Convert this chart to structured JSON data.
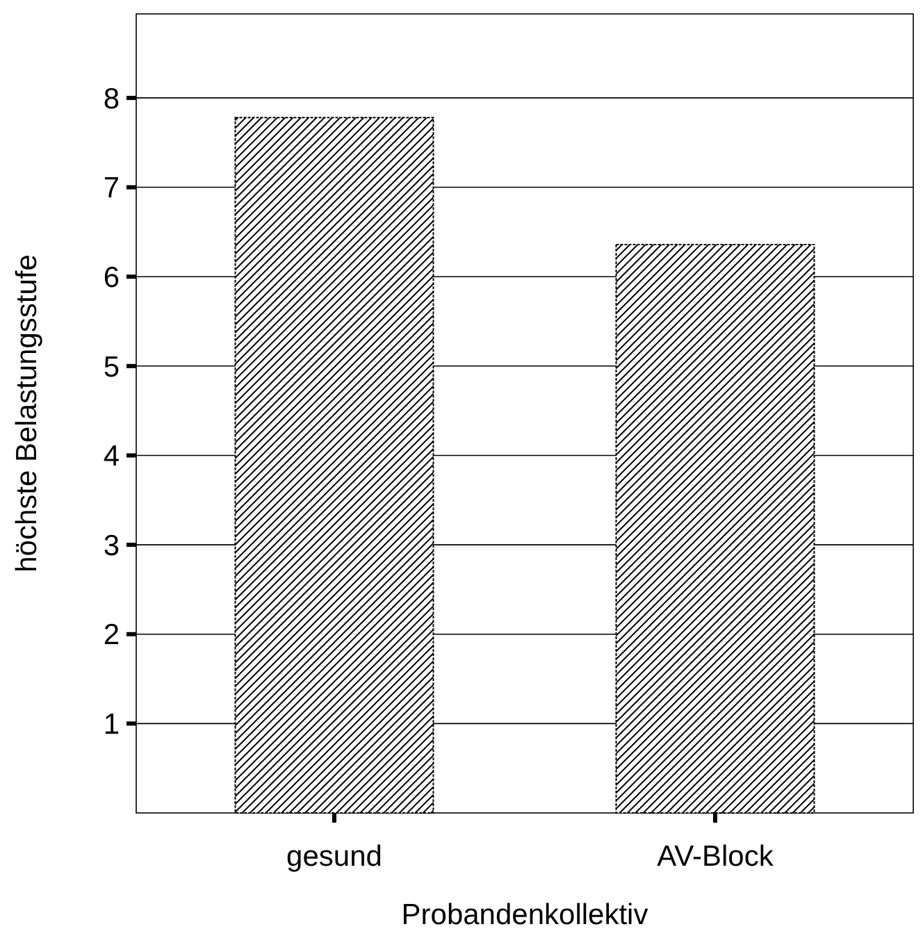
{
  "chart_data": {
    "type": "bar",
    "xlabel": "Probandenkollektiv",
    "ylabel": "höchste Belastungsstufe",
    "categories": [
      "gesund",
      "AV-Block"
    ],
    "values": [
      7.78,
      6.36
    ],
    "color": "#000000",
    "ylim": [
      0,
      8.94
    ],
    "yticks": [
      1,
      2,
      3,
      4,
      5,
      6,
      7,
      8
    ],
    "grid": "y"
  }
}
